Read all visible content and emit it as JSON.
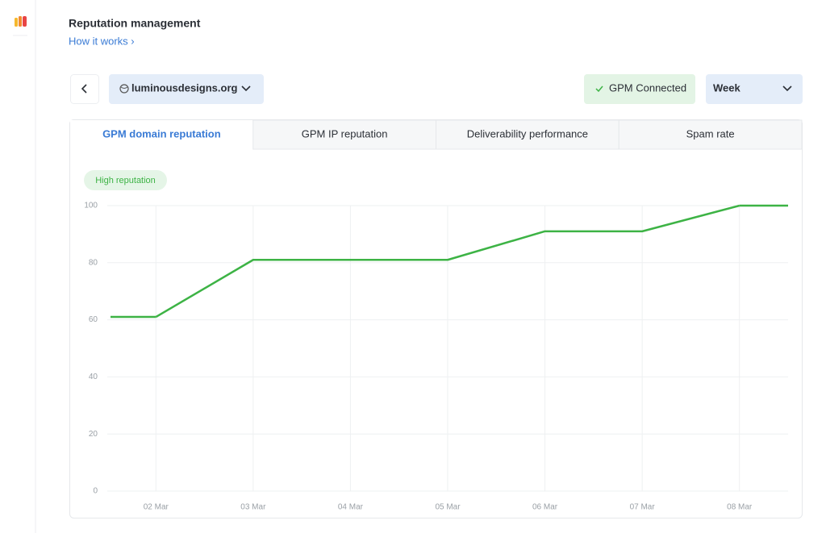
{
  "header": {
    "title": "Reputation management",
    "link": "How it works ›"
  },
  "toolbar": {
    "domain": "luminousdesigns.org",
    "status": "GPM Connected",
    "period": "Week"
  },
  "tabs": [
    "GPM domain reputation",
    "GPM IP reputation",
    "Deliverability performance",
    "Spam rate"
  ],
  "badge": "High reputation",
  "chart_data": {
    "type": "line",
    "categories": [
      "02 Mar",
      "03 Mar",
      "04 Mar",
      "05 Mar",
      "06 Mar",
      "07 Mar",
      "08 Mar"
    ],
    "values": [
      61,
      81,
      81,
      81,
      91,
      91,
      100
    ],
    "color": "#3db345",
    "ylim": [
      0,
      100
    ],
    "yticks": [
      0,
      20,
      40,
      60,
      80,
      100
    ],
    "grid": true
  }
}
